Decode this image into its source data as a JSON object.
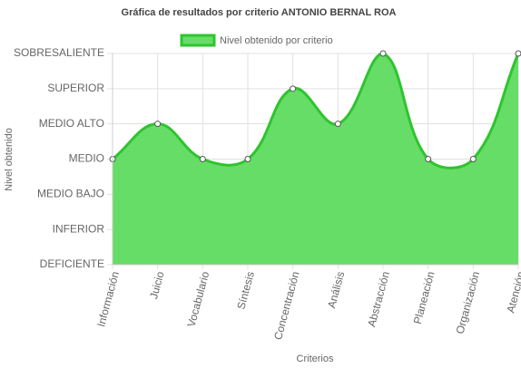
{
  "chart_data": {
    "type": "area",
    "title": "Gráfica de resultados por criterio ANTONIO BERNAL ROA",
    "x_label": "Criterios",
    "y_label": "Nivel obtenido",
    "categories": [
      "Información",
      "Juicio",
      "Vocabulario",
      "Síntesis",
      "Concentración",
      "Análisis",
      "Abstracción",
      "Planeación",
      "Organización",
      "Atención"
    ],
    "series": [
      {
        "name": "Nivel obtenido por criterio",
        "color": "#2fc42f",
        "fill": "#66dd66",
        "values": [
          3,
          4,
          3,
          3,
          5,
          4,
          6,
          3,
          3,
          6
        ]
      }
    ],
    "ylim": [
      0,
      6
    ],
    "yticks": [
      {
        "value": 0,
        "label": "DEFICIENTE"
      },
      {
        "value": 1,
        "label": "INFERIOR"
      },
      {
        "value": 2,
        "label": "MEDIO BAJO"
      },
      {
        "value": 3,
        "label": "MEDIO"
      },
      {
        "value": 4,
        "label": "MEDIO ALTO"
      },
      {
        "value": 5,
        "label": "SUPERIOR"
      },
      {
        "value": 6,
        "label": "SOBRESALIENTE"
      }
    ],
    "grid": true,
    "smooth": true,
    "legend": "top"
  }
}
